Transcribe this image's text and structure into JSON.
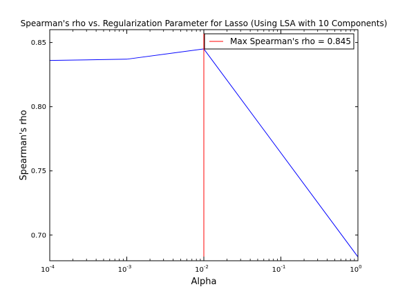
{
  "chart_data": {
    "type": "line",
    "title": "Spearman's rho vs. Regularization Parameter for Lasso (Using LSA with 10 Components)",
    "xlabel": "Alpha",
    "ylabel": "Spearman's rho",
    "xscale": "log",
    "xlim": [
      0.0001,
      1
    ],
    "ylim": [
      0.68,
      0.86
    ],
    "x_ticks": [
      {
        "base": "10",
        "exp": "-4",
        "value": 0.0001
      },
      {
        "base": "10",
        "exp": "-3",
        "value": 0.001
      },
      {
        "base": "10",
        "exp": "-2",
        "value": 0.01
      },
      {
        "base": "10",
        "exp": "-1",
        "value": 0.1
      },
      {
        "base": "10",
        "exp": "0",
        "value": 1
      }
    ],
    "y_ticks": [
      {
        "label": "0.70",
        "value": 0.7
      },
      {
        "label": "0.75",
        "value": 0.75
      },
      {
        "label": "0.80",
        "value": 0.8
      },
      {
        "label": "0.85",
        "value": 0.85
      }
    ],
    "grid": false,
    "legend_position": "top-right",
    "series": [
      {
        "color": "#0000ff",
        "x": [
          0.0001,
          0.001,
          0.01,
          1
        ],
        "values": [
          0.836,
          0.837,
          0.845,
          0.683
        ]
      }
    ],
    "vline": {
      "name": "Max Spearman's rho = 0.845",
      "x": 0.01,
      "color": "#ff0000"
    }
  }
}
